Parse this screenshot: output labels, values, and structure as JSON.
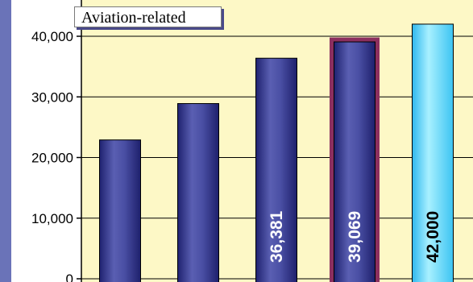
{
  "chart_data": {
    "type": "bar",
    "legend_label": "Aviation-related",
    "y_ticks": [
      "0",
      "10,000",
      "20,000",
      "30,000",
      "40,000"
    ],
    "ylim": [
      0,
      46000
    ],
    "grid": true,
    "bars": [
      {
        "value": 22900,
        "label": "",
        "style": "normal"
      },
      {
        "value": 28900,
        "label": "",
        "style": "normal"
      },
      {
        "value": 36381,
        "label": "36,381",
        "style": "normal"
      },
      {
        "value": 39069,
        "label": "39,069",
        "style": "highlighted"
      },
      {
        "value": 42000,
        "label": "42,000",
        "style": "forecast"
      }
    ],
    "colors": {
      "plot_bg": "#fdf8c6",
      "left_panel": "#6a73b8",
      "bar": "#3d3f94",
      "bar_highlight_border": "#8c2f5f",
      "forecast_bar": "#7fe3ff",
      "grid": "#000000"
    }
  }
}
